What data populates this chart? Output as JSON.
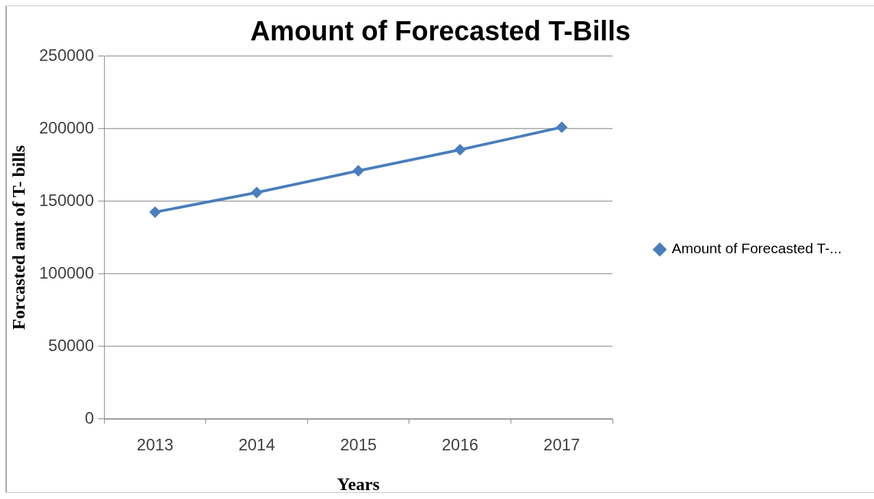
{
  "chart_data": {
    "type": "line",
    "title": "Amount of Forecasted T-Bills",
    "xlabel": "Years",
    "ylabel": "Forcasted amt of T- bills",
    "categories": [
      "2013",
      "2014",
      "2015",
      "2016",
      "2017"
    ],
    "series": [
      {
        "name": "Amount of Forecasted T-...",
        "color": "#4a7ebb",
        "values": [
          142500,
          156000,
          171000,
          185500,
          201000
        ]
      }
    ],
    "ylim": [
      0,
      250000
    ],
    "yticks": [
      0,
      50000,
      100000,
      150000,
      200000,
      250000
    ],
    "grid": "y",
    "legend": "right",
    "marker": "diamond"
  }
}
